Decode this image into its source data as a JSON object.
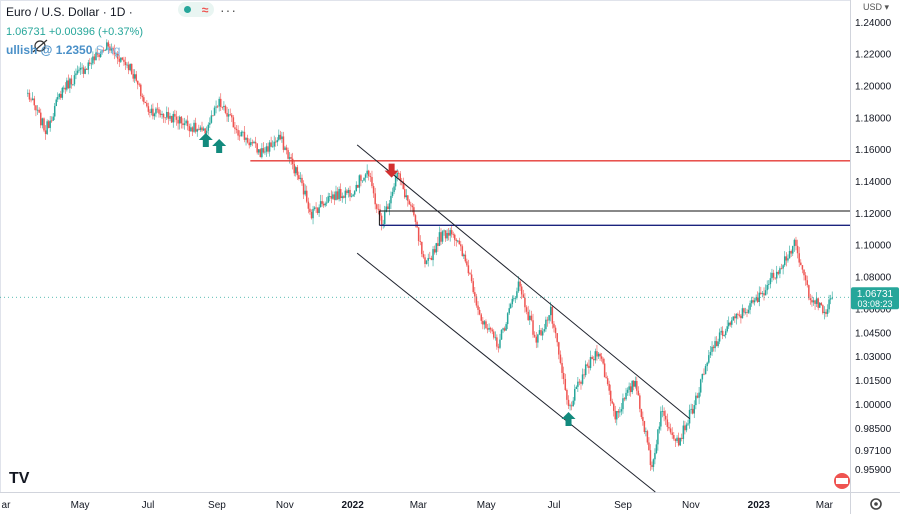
{
  "header": {
    "symbol": "Euro / U.S. Dollar · 1D ·",
    "quote": "1.06731 +0.00396 (+0.37%)",
    "note": "ullish  @ 1.2350",
    "note_dim": "S  ng"
  },
  "price_scale": {
    "currency": "USD",
    "badge_price": "1.06731",
    "badge_time": "03:08:23"
  },
  "colors": {
    "up": "#26a69a",
    "down": "#ef5350",
    "resistance": "#e53935",
    "navy": "#1a237e",
    "channel": "#1e222d",
    "arrow_up": "#128a7d",
    "arrow_down": "#d32f2f"
  },
  "icons": [
    "tradingview-logo-icon",
    "flag-icon",
    "gear-icon",
    "eye-off-icon",
    "dot-icon",
    "wave-icon"
  ],
  "chart_data": {
    "type": "candlestick",
    "series_name": "EUR/USD",
    "timeframe": "1D",
    "ylim": [
      0.945,
      1.254
    ],
    "y_ticks": [
      "1.24000",
      "1.22000",
      "1.20000",
      "1.18000",
      "1.16000",
      "1.14000",
      "1.12000",
      "1.10000",
      "1.08000",
      "1.06000",
      "1.04500",
      "1.03000",
      "1.01500",
      "1.00000",
      "0.98500",
      "0.97100",
      "0.95900"
    ],
    "x_ticks": [
      "ar",
      "May",
      "Jul",
      "Sep",
      "Nov",
      "2022",
      "Mar",
      "May",
      "Jul",
      "Sep",
      "Nov",
      "2023",
      "Mar"
    ],
    "x_tick_dates": [
      "2021-03-01",
      "2021-05-01",
      "2021-07-01",
      "2021-09-01",
      "2021-11-01",
      "2022-01-01",
      "2022-03-01",
      "2022-05-01",
      "2022-07-01",
      "2022-09-01",
      "2022-11-01",
      "2023-01-01",
      "2023-03-01"
    ],
    "last_price": 1.06731,
    "path": [
      [
        "2021-03-15",
        1.195
      ],
      [
        "2021-03-31",
        1.172
      ],
      [
        "2021-04-15",
        1.198
      ],
      [
        "2021-04-30",
        1.208
      ],
      [
        "2021-05-25",
        1.225
      ],
      [
        "2021-06-15",
        1.212
      ],
      [
        "2021-06-30",
        1.186
      ],
      [
        "2021-07-15",
        1.182
      ],
      [
        "2021-07-31",
        1.178
      ],
      [
        "2021-08-20",
        1.17
      ],
      [
        "2021-09-03",
        1.189
      ],
      [
        "2021-09-20",
        1.172
      ],
      [
        "2021-10-10",
        1.158
      ],
      [
        "2021-10-28",
        1.167
      ],
      [
        "2021-11-15",
        1.14
      ],
      [
        "2021-11-25",
        1.12
      ],
      [
        "2021-12-10",
        1.13
      ],
      [
        "2021-12-31",
        1.134
      ],
      [
        "2022-01-14",
        1.147
      ],
      [
        "2022-01-27",
        1.113
      ],
      [
        "2022-02-10",
        1.145
      ],
      [
        "2022-02-25",
        1.118
      ],
      [
        "2022-03-07",
        1.085
      ],
      [
        "2022-03-20",
        1.105
      ],
      [
        "2022-03-31",
        1.11
      ],
      [
        "2022-04-15",
        1.085
      ],
      [
        "2022-04-28",
        1.05
      ],
      [
        "2022-05-12",
        1.038
      ],
      [
        "2022-05-30",
        1.076
      ],
      [
        "2022-06-15",
        1.04
      ],
      [
        "2022-06-28",
        1.058
      ],
      [
        "2022-07-14",
        0.997
      ],
      [
        "2022-07-28",
        1.02
      ],
      [
        "2022-08-10",
        1.035
      ],
      [
        "2022-08-25",
        0.993
      ],
      [
        "2022-09-12",
        1.015
      ],
      [
        "2022-09-27",
        0.96
      ],
      [
        "2022-10-05",
        0.995
      ],
      [
        "2022-10-21",
        0.977
      ],
      [
        "2022-11-04",
        1.0
      ],
      [
        "2022-11-20",
        1.035
      ],
      [
        "2022-12-05",
        1.05
      ],
      [
        "2022-12-31",
        1.066
      ],
      [
        "2023-01-20",
        1.087
      ],
      [
        "2023-02-02",
        1.1
      ],
      [
        "2023-02-15",
        1.07
      ],
      [
        "2023-03-01",
        1.057
      ],
      [
        "2023-03-08",
        1.067
      ]
    ],
    "annotations": {
      "resistance_line": {
        "price": 1.153,
        "from": "2021-10-01"
      },
      "box_top": {
        "price": 1.1215,
        "from": "2022-01-25"
      },
      "box_bottom": {
        "price": 1.1125,
        "from": "2022-01-25"
      },
      "channel_upper": [
        [
          "2022-01-05",
          1.163
        ],
        [
          "2022-10-31",
          0.991
        ]
      ],
      "channel_lower": [
        [
          "2022-01-05",
          1.095
        ],
        [
          "2022-09-30",
          0.945
        ]
      ],
      "arrows_up": [
        "2021-08-22",
        "2021-09-03",
        "2022-07-14"
      ],
      "arrow_down": {
        "date": "2022-02-05",
        "price": 1.15
      }
    }
  }
}
